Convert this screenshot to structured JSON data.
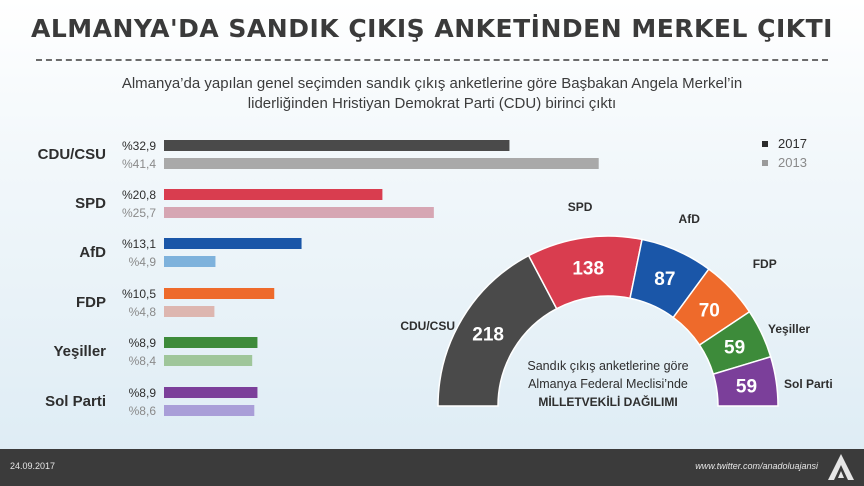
{
  "title": "ALMANYA'DA SANDIK ÇIKIŞ ANKETİNDEN MERKEL ÇIKTI",
  "subtitle_line1": "Almanya’da yapılan genel seçimden sandık çıkış anketlerine göre Başbakan Angela Merkel’in",
  "subtitle_line2": "liderliğinden Hristiyan Demokrat Parti (CDU) birinci çıktı",
  "footer": {
    "date": "24.09.2017",
    "link": "www.twitter.com/anadoluajansi"
  },
  "chart_data": [
    {
      "type": "bar",
      "orientation": "horizontal",
      "categories": [
        "CDU/CSU",
        "SPD",
        "AfD",
        "FDP",
        "Yeşiller",
        "Sol Parti"
      ],
      "series": [
        {
          "name": "2017",
          "values": [
            32.9,
            20.8,
            13.1,
            10.5,
            8.9,
            8.9
          ],
          "labels": [
            "%32,9",
            "%20,8",
            "%13,1",
            "%10,5",
            "%8,9",
            "%8,9"
          ],
          "colors": [
            "#4a4a4a",
            "#d93d4f",
            "#1a56a8",
            "#ee6a2b",
            "#3d8b3a",
            "#7b3f9a"
          ]
        },
        {
          "name": "2013",
          "values": [
            41.4,
            25.7,
            4.9,
            4.8,
            8.4,
            8.6
          ],
          "labels": [
            "%41,4",
            "%25,7",
            "%4,9",
            "%4,8",
            "%8,4",
            "%8,6"
          ],
          "colors": [
            "#a9a9a9",
            "#d6a6b3",
            "#7eb2dc",
            "#ddb6b0",
            "#9fc69a",
            "#a99ed8"
          ]
        }
      ],
      "legend": {
        "position": "top-right",
        "marker_colors": [
          "#2b2b2b",
          "#9a9a9a"
        ]
      }
    },
    {
      "type": "pie",
      "shape": "semicircle",
      "categories": [
        "CDU/CSU",
        "SPD",
        "AfD",
        "FDP",
        "Yeşiller",
        "Sol Parti"
      ],
      "values": [
        218,
        138,
        87,
        70,
        59,
        59
      ],
      "colors": [
        "#4a4a4a",
        "#d93d4f",
        "#1a56a8",
        "#ee6a2b",
        "#3d8b3a",
        "#7b3f9a"
      ],
      "center_text": [
        "Sandık çıkış anketlerine göre",
        "Almanya Federal Meclisi’nde",
        "MİLLETVEKİLİ DAĞILIMI"
      ]
    }
  ]
}
